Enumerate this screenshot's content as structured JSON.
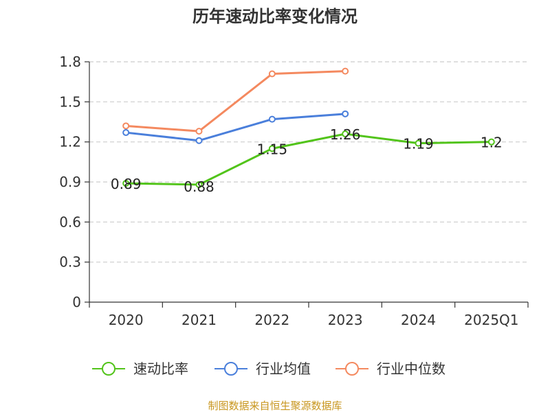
{
  "chart_data": {
    "type": "line",
    "title": "历年速动比率变化情况",
    "categories": [
      "2020",
      "2021",
      "2022",
      "2023",
      "2024",
      "2025Q1"
    ],
    "ylim": [
      0,
      1.8
    ],
    "yticks": [
      "0",
      "0.3",
      "0.6",
      "0.9",
      "1.2",
      "1.5",
      "1.8"
    ],
    "grid": true,
    "legend_position": "bottom",
    "series": [
      {
        "name": "速动比率",
        "color": "#52c41a",
        "values": [
          0.89,
          0.88,
          1.15,
          1.26,
          1.19,
          1.2
        ],
        "data_labels": [
          "0.89",
          "0.88",
          "1.15",
          "1.26",
          "1.19",
          "1.2"
        ]
      },
      {
        "name": "行业均值",
        "color": "#4a7fdb",
        "values": [
          1.27,
          1.21,
          1.37,
          1.41,
          null,
          null
        ]
      },
      {
        "name": "行业中位数",
        "color": "#f4895f",
        "values": [
          1.32,
          1.28,
          1.71,
          1.73,
          null,
          null
        ]
      }
    ]
  },
  "source_note": "制图数据来自恒生聚源数据库",
  "colors": {
    "axis": "#333333",
    "grid": "#cccccc",
    "source": "#c8961e"
  }
}
